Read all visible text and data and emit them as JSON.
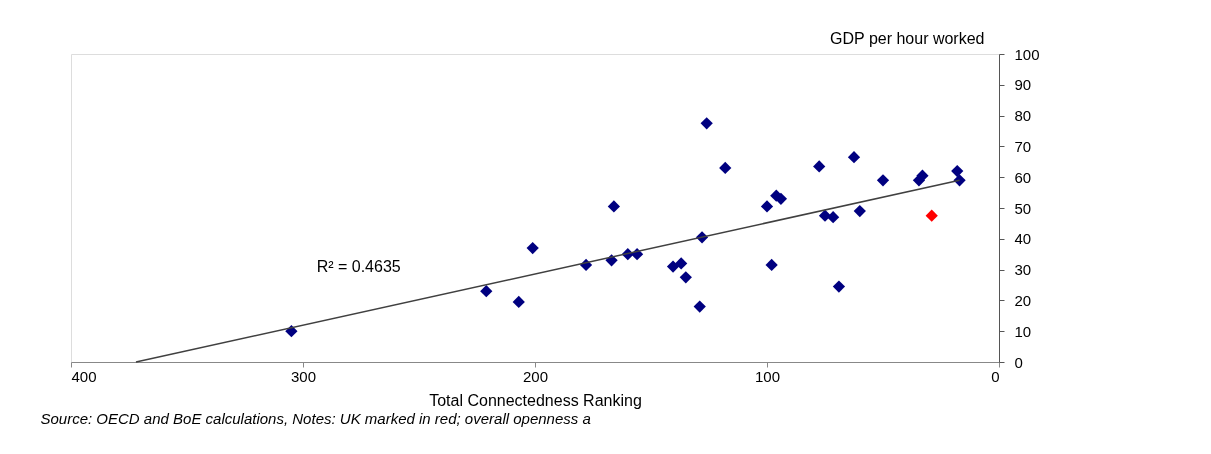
{
  "chart_data": {
    "type": "scatter",
    "ylabel": "GDP per hour worked",
    "xlabel": "Total Connectedness Ranking",
    "xlim": [
      400,
      0
    ],
    "xticks": [
      400,
      300,
      200,
      100,
      0
    ],
    "ylim": [
      0,
      100
    ],
    "yticks": [
      0,
      10,
      20,
      30,
      40,
      50,
      60,
      70,
      80,
      90,
      100
    ],
    "grid": false,
    "series": [
      {
        "marker": "diamond",
        "color": "#000080",
        "x": [
          305,
          221,
          207,
          201,
          178,
          167,
          166,
          160,
          156,
          140.5,
          137,
          135,
          129,
          128,
          126,
          118,
          100,
          98,
          96,
          94,
          77.5,
          75,
          71.5,
          69,
          62.5,
          60,
          50,
          34.5,
          33,
          18,
          17
        ],
        "values": [
          10,
          23,
          19.5,
          37,
          31.5,
          33,
          50.5,
          35,
          35,
          31,
          32,
          27.5,
          18,
          40.5,
          77.5,
          63,
          50.5,
          31.5,
          54,
          53,
          63.5,
          47.5,
          47,
          24.5,
          66.5,
          49,
          59,
          59,
          60.5,
          62,
          59
        ]
      },
      {
        "marker": "diamond",
        "color": "#ff0000",
        "x": [
          29
        ],
        "values": [
          47.5
        ]
      },
      {
        "type": "line",
        "color": "#404040",
        "line_style": "solid",
        "x": [
          372,
          17
        ],
        "values": [
          0,
          59
        ]
      }
    ],
    "annotations": [
      "R² = 0.4635",
      "Source: OECD and BoE calculations, Notes: UK marked in red; overall openness a"
    ]
  }
}
